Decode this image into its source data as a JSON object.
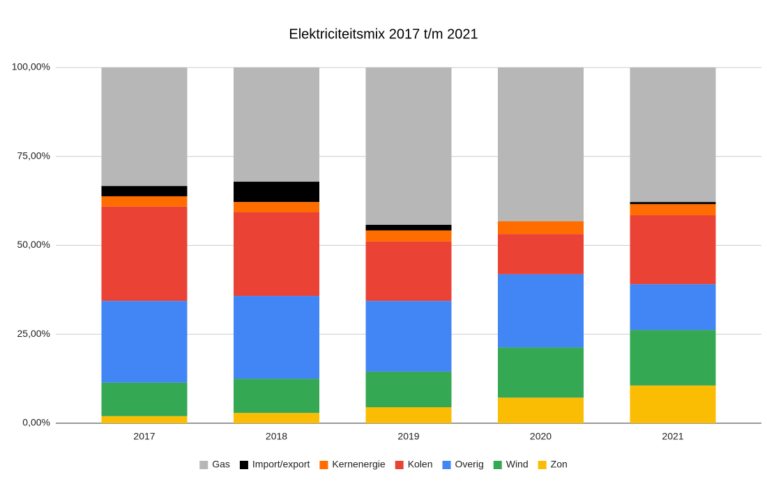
{
  "chart_data": {
    "type": "stacked_bar",
    "title": "Elektriciteitsmix 2017 t/m 2021",
    "categories": [
      "2017",
      "2018",
      "2019",
      "2020",
      "2021"
    ],
    "series": [
      {
        "name": "Gas",
        "color": "#b7b7b7",
        "values": [
          33.3,
          32.1,
          44.2,
          43.2,
          37.8
        ]
      },
      {
        "name": "Import/export",
        "color": "#000000",
        "values": [
          2.9,
          5.7,
          1.6,
          0,
          0.6
        ]
      },
      {
        "name": "Kernenergie",
        "color": "#ff6d01",
        "values": [
          2.9,
          2.9,
          3.1,
          3.6,
          3.1
        ]
      },
      {
        "name": "Kolen",
        "color": "#ea4335",
        "values": [
          26.5,
          23.5,
          16.7,
          11.3,
          19.4
        ]
      },
      {
        "name": "Overig",
        "color": "#4285f4",
        "values": [
          23.0,
          23.3,
          19.9,
          20.6,
          12.9
        ]
      },
      {
        "name": "Wind",
        "color": "#34a853",
        "values": [
          9.4,
          9.6,
          10.0,
          14.1,
          15.6
        ]
      },
      {
        "name": "Zon",
        "color": "#fbbc04",
        "values": [
          2.0,
          2.9,
          4.5,
          7.2,
          10.6
        ]
      }
    ],
    "ylim": [
      0,
      100
    ],
    "yticks": [
      {
        "value": 0,
        "label": "0,00%"
      },
      {
        "value": 25,
        "label": "25,00%"
      },
      {
        "value": 50,
        "label": "50,00%"
      },
      {
        "value": 75,
        "label": "75,00%"
      },
      {
        "value": 100,
        "label": "100,00%"
      }
    ],
    "grid": true,
    "legend": "bottom"
  }
}
